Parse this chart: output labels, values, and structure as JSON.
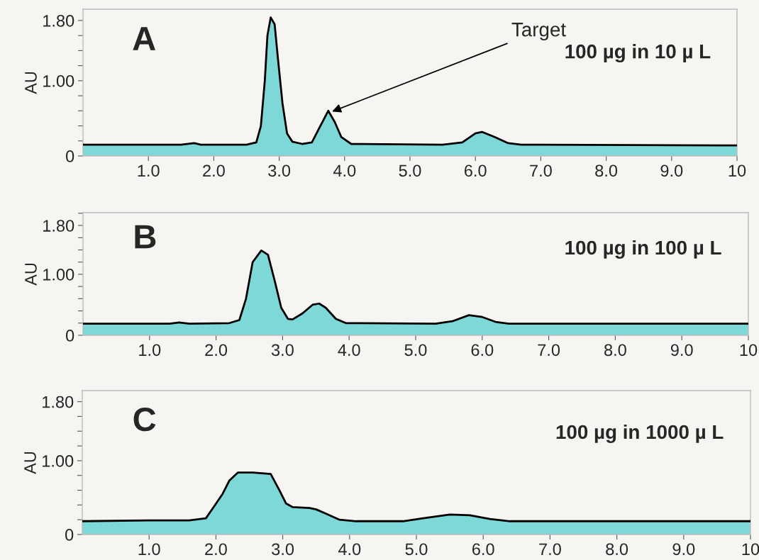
{
  "chart_data": [
    {
      "type": "area",
      "title": "A",
      "subtitle": "100 µg in 10 µ L",
      "ylabel": "AU",
      "xlim": [
        0,
        10
      ],
      "ylim": [
        0,
        1.95
      ],
      "xticks": [
        {
          "value": 1,
          "label": "1.0"
        },
        {
          "value": 2,
          "label": "2.0"
        },
        {
          "value": 3,
          "label": "3.0"
        },
        {
          "value": 4,
          "label": "4.0"
        },
        {
          "value": 5,
          "label": "5.0"
        },
        {
          "value": 6,
          "label": "6.0"
        },
        {
          "value": 7,
          "label": "7.0"
        },
        {
          "value": 8,
          "label": "8.0"
        },
        {
          "value": 9,
          "label": "9.0"
        },
        10
      ],
      "yticks": [
        0,
        {
          "value": 0.2,
          "label": null
        },
        {
          "value": 0.4,
          "label": null
        },
        {
          "value": 0.6,
          "label": null
        },
        {
          "value": 0.8,
          "label": null
        },
        {
          "value": 1,
          "label": "1.00"
        },
        {
          "value": 1.2,
          "label": null
        },
        {
          "value": 1.4,
          "label": null
        },
        {
          "value": 1.6,
          "label": null
        },
        {
          "value": 1.8,
          "label": "1.80"
        }
      ],
      "annotations": [
        {
          "text": "Target",
          "x": 3.78,
          "y": 0.58
        }
      ],
      "series": [
        {
          "color": "#7fd8d8",
          "x": [
            0,
            1.5,
            1.7,
            1.8,
            2.5,
            2.65,
            2.72,
            2.78,
            2.82,
            2.87,
            2.93,
            2.98,
            3.05,
            3.12,
            3.2,
            3.35,
            3.5,
            3.6,
            3.75,
            3.85,
            3.95,
            4.1,
            5.5,
            5.8,
            6.0,
            6.1,
            6.3,
            6.5,
            6.7,
            10
          ],
          "values": [
            0.15,
            0.15,
            0.17,
            0.15,
            0.15,
            0.18,
            0.4,
            1.0,
            1.6,
            1.84,
            1.75,
            1.3,
            0.7,
            0.3,
            0.19,
            0.16,
            0.18,
            0.35,
            0.6,
            0.45,
            0.25,
            0.16,
            0.15,
            0.18,
            0.3,
            0.32,
            0.25,
            0.17,
            0.15,
            0.14
          ]
        }
      ]
    },
    {
      "type": "area",
      "title": "B",
      "subtitle": "100 µg in 100 µ L",
      "ylabel": "AU",
      "xlim": [
        0,
        10
      ],
      "ylim": [
        0,
        2.01
      ],
      "xticks": [
        {
          "value": 1,
          "label": "1.0"
        },
        {
          "value": 2,
          "label": "2.0"
        },
        {
          "value": 3,
          "label": "3.0"
        },
        {
          "value": 4,
          "label": "4.0"
        },
        {
          "value": 5,
          "label": "5.0"
        },
        {
          "value": 6,
          "label": "6.0"
        },
        {
          "value": 7,
          "label": "7.0"
        },
        {
          "value": 8,
          "label": "8.0"
        },
        {
          "value": 9,
          "label": "9.0"
        },
        10
      ],
      "yticks": [
        0,
        {
          "value": 0.2,
          "label": null
        },
        {
          "value": 0.4,
          "label": null
        },
        {
          "value": 0.6,
          "label": null
        },
        {
          "value": 0.8,
          "label": null
        },
        {
          "value": 1,
          "label": "1.00"
        },
        {
          "value": 1.2,
          "label": null
        },
        {
          "value": 1.4,
          "label": null
        },
        {
          "value": 1.6,
          "label": null
        },
        {
          "value": 1.8,
          "label": "1.80"
        },
        {
          "value": 2.0,
          "label": null
        }
      ],
      "series": [
        {
          "color": "#7fd8d8",
          "x": [
            0,
            1.3,
            1.45,
            1.6,
            2.2,
            2.35,
            2.45,
            2.55,
            2.68,
            2.78,
            2.88,
            2.98,
            3.08,
            3.15,
            3.3,
            3.45,
            3.55,
            3.65,
            3.8,
            3.95,
            5.3,
            5.55,
            5.8,
            6.0,
            6.2,
            6.4,
            10
          ],
          "values": [
            0.19,
            0.19,
            0.21,
            0.19,
            0.2,
            0.25,
            0.6,
            1.2,
            1.39,
            1.32,
            0.9,
            0.45,
            0.27,
            0.26,
            0.36,
            0.5,
            0.52,
            0.45,
            0.27,
            0.2,
            0.19,
            0.23,
            0.33,
            0.3,
            0.22,
            0.19,
            0.19
          ]
        }
      ]
    },
    {
      "type": "area",
      "title": "C",
      "subtitle": "100 µg in 1000 µ L",
      "ylabel": "AU",
      "xlim": [
        0,
        10
      ],
      "ylim": [
        0,
        1.95
      ],
      "xticks": [
        {
          "value": 1,
          "label": "1.0"
        },
        {
          "value": 2,
          "label": "2.0"
        },
        {
          "value": 3,
          "label": "3.0"
        },
        {
          "value": 4,
          "label": "4.0"
        },
        {
          "value": 5,
          "label": "5.0"
        },
        {
          "value": 6,
          "label": "6.0"
        },
        {
          "value": 7,
          "label": "7.0"
        },
        {
          "value": 8,
          "label": "8.0"
        },
        {
          "value": 9,
          "label": "9.0"
        },
        10
      ],
      "yticks": [
        0,
        {
          "value": 0.2,
          "label": null
        },
        {
          "value": 0.4,
          "label": null
        },
        {
          "value": 0.6,
          "label": null
        },
        {
          "value": 0.8,
          "label": null
        },
        {
          "value": 1,
          "label": "1.00"
        },
        {
          "value": 1.2,
          "label": null
        },
        {
          "value": 1.4,
          "label": null
        },
        {
          "value": 1.6,
          "label": null
        },
        {
          "value": 1.8,
          "label": "1.80"
        }
      ],
      "series": [
        {
          "color": "#7fd8d8",
          "x": [
            0,
            1.0,
            1.6,
            1.85,
            1.95,
            2.1,
            2.2,
            2.33,
            2.55,
            2.82,
            2.95,
            3.05,
            3.15,
            3.4,
            3.5,
            3.65,
            3.85,
            4.1,
            4.8,
            5.1,
            5.5,
            5.8,
            6.1,
            6.4,
            10
          ],
          "values": [
            0.18,
            0.19,
            0.19,
            0.22,
            0.35,
            0.55,
            0.73,
            0.84,
            0.84,
            0.82,
            0.6,
            0.42,
            0.37,
            0.36,
            0.34,
            0.28,
            0.2,
            0.18,
            0.18,
            0.22,
            0.27,
            0.26,
            0.21,
            0.18,
            0.18
          ]
        }
      ]
    }
  ]
}
